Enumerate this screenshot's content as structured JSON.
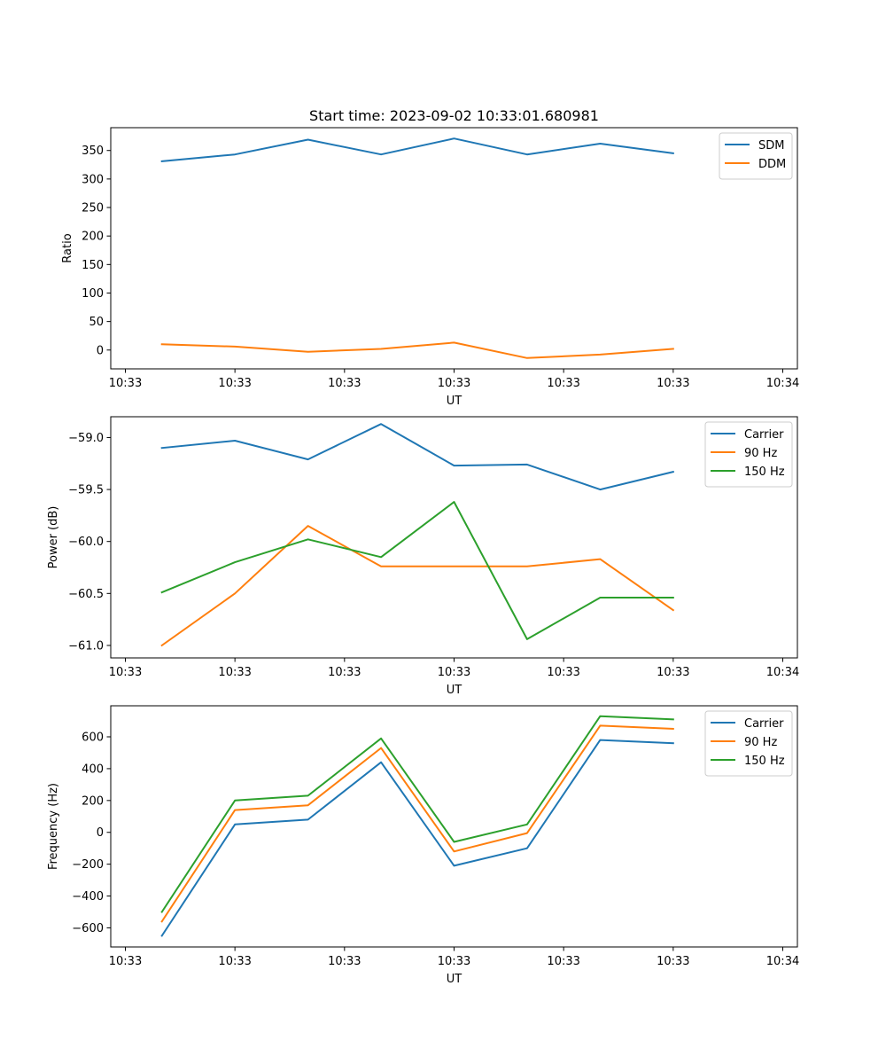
{
  "title": "Start time: 2023-09-02 10:33:01.680981",
  "colors": {
    "c0": "#1f77b4",
    "c1": "#ff7f0e",
    "c2": "#2ca02c"
  },
  "chart_data": [
    {
      "type": "line",
      "title": "Start time: 2023-09-02 10:33:01.680981",
      "xlabel": "UT",
      "ylabel": "Ratio",
      "xlim": [
        -0.7,
        8.7
      ],
      "ylim": [
        -33,
        390
      ],
      "x_ticks": [
        {
          "x": -0.5,
          "label": "10:33"
        },
        {
          "x": 1.0,
          "label": "10:33"
        },
        {
          "x": 2.5,
          "label": "10:33"
        },
        {
          "x": 4.0,
          "label": "10:33"
        },
        {
          "x": 5.5,
          "label": "10:33"
        },
        {
          "x": 7.0,
          "label": "10:33"
        },
        {
          "x": 8.5,
          "label": "10:34"
        }
      ],
      "y_ticks": [
        {
          "y": 0,
          "label": "0"
        },
        {
          "y": 50,
          "label": "50"
        },
        {
          "y": 100,
          "label": "100"
        },
        {
          "y": 150,
          "label": "150"
        },
        {
          "y": 200,
          "label": "200"
        },
        {
          "y": 250,
          "label": "250"
        },
        {
          "y": 300,
          "label": "300"
        },
        {
          "y": 350,
          "label": "350"
        }
      ],
      "x": [
        0,
        1,
        2,
        3,
        4,
        5,
        6,
        7
      ],
      "series": [
        {
          "name": "SDM",
          "color": "#1f77b4",
          "values": [
            331,
            343,
            369,
            343,
            371,
            343,
            362,
            345
          ]
        },
        {
          "name": "DDM",
          "color": "#ff7f0e",
          "values": [
            10,
            6,
            -3,
            2,
            13,
            -14,
            -8,
            2
          ]
        }
      ],
      "legend": "top-right"
    },
    {
      "type": "line",
      "xlabel": "UT",
      "ylabel": "Power (dB)",
      "xlim": [
        -0.7,
        8.7
      ],
      "ylim": [
        -61.12,
        -58.8
      ],
      "x_ticks": [
        {
          "x": -0.5,
          "label": "10:33"
        },
        {
          "x": 1.0,
          "label": "10:33"
        },
        {
          "x": 2.5,
          "label": "10:33"
        },
        {
          "x": 4.0,
          "label": "10:33"
        },
        {
          "x": 5.5,
          "label": "10:33"
        },
        {
          "x": 7.0,
          "label": "10:33"
        },
        {
          "x": 8.5,
          "label": "10:34"
        }
      ],
      "y_ticks": [
        {
          "y": -61.0,
          "label": "−61.0"
        },
        {
          "y": -60.5,
          "label": "−60.5"
        },
        {
          "y": -60.0,
          "label": "−60.0"
        },
        {
          "y": -59.5,
          "label": "−59.5"
        },
        {
          "y": -59.0,
          "label": "−59.0"
        }
      ],
      "x": [
        0,
        1,
        2,
        3,
        4,
        5,
        6,
        7
      ],
      "series": [
        {
          "name": "Carrier",
          "color": "#1f77b4",
          "values": [
            -59.1,
            -59.03,
            -59.21,
            -58.87,
            -59.27,
            -59.26,
            -59.5,
            -59.33
          ]
        },
        {
          "name": "90 Hz",
          "color": "#ff7f0e",
          "values": [
            -61.0,
            -60.5,
            -59.85,
            -60.24,
            -60.24,
            -60.24,
            -60.17,
            -60.66
          ]
        },
        {
          "name": "150 Hz",
          "color": "#2ca02c",
          "values": [
            -60.49,
            -60.2,
            -59.98,
            -60.15,
            -59.62,
            -60.94,
            -60.54,
            -60.54
          ]
        }
      ],
      "legend": "top-right"
    },
    {
      "type": "line",
      "xlabel": "UT",
      "ylabel": "Frequency (Hz)",
      "xlim": [
        -0.7,
        8.7
      ],
      "ylim": [
        -720,
        795
      ],
      "x_ticks": [
        {
          "x": -0.5,
          "label": "10:33"
        },
        {
          "x": 1.0,
          "label": "10:33"
        },
        {
          "x": 2.5,
          "label": "10:33"
        },
        {
          "x": 4.0,
          "label": "10:33"
        },
        {
          "x": 5.5,
          "label": "10:33"
        },
        {
          "x": 7.0,
          "label": "10:33"
        },
        {
          "x": 8.5,
          "label": "10:34"
        }
      ],
      "y_ticks": [
        {
          "y": -600,
          "label": "−600"
        },
        {
          "y": -400,
          "label": "−400"
        },
        {
          "y": -200,
          "label": "−200"
        },
        {
          "y": 0,
          "label": "0"
        },
        {
          "y": 200,
          "label": "200"
        },
        {
          "y": 400,
          "label": "400"
        },
        {
          "y": 600,
          "label": "600"
        }
      ],
      "x": [
        0,
        1,
        2,
        3,
        4,
        5,
        6,
        7
      ],
      "series": [
        {
          "name": "Carrier",
          "color": "#1f77b4",
          "values": [
            -650,
            50,
            80,
            440,
            -210,
            -100,
            580,
            560
          ]
        },
        {
          "name": "90 Hz",
          "color": "#ff7f0e",
          "values": [
            -560,
            140,
            170,
            530,
            -120,
            -5,
            670,
            650
          ]
        },
        {
          "name": "150 Hz",
          "color": "#2ca02c",
          "values": [
            -500,
            200,
            230,
            590,
            -60,
            50,
            730,
            710
          ]
        }
      ],
      "legend": "top-right"
    }
  ]
}
